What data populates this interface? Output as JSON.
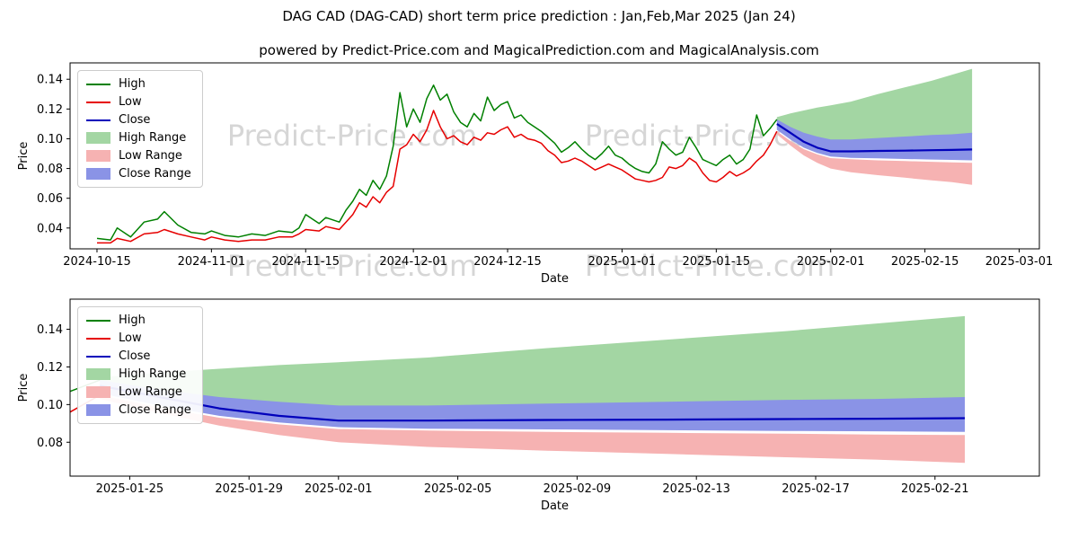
{
  "page": {
    "title": "DAG CAD (DAG-CAD) short term price prediction : Jan,Feb,Mar 2025 (Jan 24)",
    "subtitle": "powered by Predict-Price.com and MagicalPrediction.com and MagicalAnalysis.com",
    "watermark": "Predict-Price.com"
  },
  "colors": {
    "high": "#008000",
    "low": "#e60000",
    "close": "#0000bb",
    "high_range": "#a3d6a3",
    "low_range": "#f6b2b2",
    "close_range": "#8a93e6",
    "axis": "#000000",
    "watermark": "#d6d6d6"
  },
  "legend": [
    {
      "label": "High",
      "type": "line",
      "color_key": "high"
    },
    {
      "label": "Low",
      "type": "line",
      "color_key": "low"
    },
    {
      "label": "Close",
      "type": "line",
      "color_key": "close"
    },
    {
      "label": "High Range",
      "type": "patch",
      "color_key": "high_range"
    },
    {
      "label": "Low Range",
      "type": "patch",
      "color_key": "low_range"
    },
    {
      "label": "Close Range",
      "type": "patch",
      "color_key": "close_range"
    }
  ],
  "chart_data": [
    {
      "type": "line",
      "title": "",
      "xlabel": "Date",
      "ylabel": "Price",
      "x_unit": "days since 2024-10-15",
      "x_domain": [
        -4,
        140
      ],
      "y_domain": [
        0.026,
        0.151
      ],
      "grid": false,
      "legend_position": "upper-left",
      "x_ticks": [
        {
          "x": 0,
          "label": "2024-10-15"
        },
        {
          "x": 17,
          "label": "2024-11-01"
        },
        {
          "x": 31,
          "label": "2024-11-15"
        },
        {
          "x": 47,
          "label": "2024-12-01"
        },
        {
          "x": 61,
          "label": "2024-12-15"
        },
        {
          "x": 78,
          "label": "2025-01-01"
        },
        {
          "x": 92,
          "label": "2025-01-15"
        },
        {
          "x": 109,
          "label": "2025-02-01"
        },
        {
          "x": 123,
          "label": "2025-02-15"
        },
        {
          "x": 137,
          "label": "2025-03-01"
        }
      ],
      "y_ticks": [
        0.04,
        0.06,
        0.08,
        0.1,
        0.12,
        0.14
      ],
      "bands": [
        {
          "name": "High Range",
          "color_key": "high_range",
          "x": [
            101,
            103,
            105,
            107,
            109,
            112,
            116,
            120,
            124,
            127,
            130
          ],
          "upper": [
            0.1145,
            0.117,
            0.119,
            0.121,
            0.1225,
            0.125,
            0.13,
            0.1345,
            0.139,
            0.143,
            0.147
          ],
          "lower": [
            0.1125,
            0.1065,
            0.102,
            0.0995,
            0.098,
            0.0985,
            0.0995,
            0.1005,
            0.1015,
            0.102,
            0.103
          ]
        },
        {
          "name": "Low Range",
          "color_key": "low_range",
          "x": [
            101,
            103,
            105,
            107,
            109,
            112,
            116,
            120,
            124,
            127,
            130
          ],
          "upper": [
            0.105,
            0.0985,
            0.093,
            0.0895,
            0.087,
            0.0862,
            0.0855,
            0.085,
            0.0845,
            0.0841,
            0.0838
          ],
          "lower": [
            0.103,
            0.0955,
            0.0888,
            0.0838,
            0.08,
            0.0775,
            0.0755,
            0.0738,
            0.072,
            0.0708,
            0.069
          ]
        },
        {
          "name": "Close Range",
          "color_key": "close_range",
          "x": [
            101,
            103,
            105,
            107,
            109,
            112,
            116,
            120,
            124,
            127,
            130
          ],
          "upper": [
            0.113,
            0.108,
            0.104,
            0.1015,
            0.0995,
            0.0995,
            0.1005,
            0.1015,
            0.1025,
            0.103,
            0.104
          ],
          "lower": [
            0.106,
            0.0995,
            0.094,
            0.0905,
            0.088,
            0.0872,
            0.0868,
            0.0864,
            0.086,
            0.0858,
            0.0855
          ]
        }
      ],
      "lines": [
        {
          "name": "High",
          "color_key": "high",
          "width": 1.5,
          "x": [
            0,
            2,
            3,
            5,
            7,
            9,
            10,
            12,
            14,
            16,
            17,
            19,
            21,
            23,
            25,
            27,
            29,
            30,
            31,
            33,
            34,
            36,
            37,
            38,
            39,
            40,
            41,
            42,
            43,
            44,
            45,
            46,
            47,
            48,
            49,
            50,
            51,
            52,
            53,
            54,
            55,
            56,
            57,
            58,
            59,
            60,
            61,
            62,
            63,
            64,
            65,
            66,
            67,
            68,
            69,
            70,
            71,
            72,
            73,
            74,
            75,
            76,
            77,
            78,
            79,
            80,
            81,
            82,
            83,
            84,
            85,
            86,
            87,
            88,
            89,
            90,
            91,
            92,
            93,
            94,
            95,
            96,
            97,
            98,
            99,
            100,
            101
          ],
          "y": [
            0.033,
            0.032,
            0.04,
            0.034,
            0.044,
            0.046,
            0.051,
            0.042,
            0.037,
            0.036,
            0.038,
            0.035,
            0.034,
            0.036,
            0.035,
            0.038,
            0.037,
            0.04,
            0.049,
            0.043,
            0.047,
            0.044,
            0.052,
            0.058,
            0.066,
            0.062,
            0.072,
            0.066,
            0.075,
            0.095,
            0.131,
            0.108,
            0.12,
            0.111,
            0.127,
            0.136,
            0.126,
            0.13,
            0.118,
            0.111,
            0.108,
            0.117,
            0.112,
            0.128,
            0.119,
            0.123,
            0.125,
            0.114,
            0.116,
            0.111,
            0.108,
            0.105,
            0.101,
            0.097,
            0.091,
            0.094,
            0.098,
            0.093,
            0.089,
            0.086,
            0.09,
            0.095,
            0.089,
            0.087,
            0.083,
            0.08,
            0.078,
            0.077,
            0.083,
            0.098,
            0.093,
            0.089,
            0.091,
            0.101,
            0.094,
            0.086,
            0.084,
            0.082,
            0.086,
            0.089,
            0.083,
            0.086,
            0.093,
            0.116,
            0.102,
            0.107,
            0.113
          ]
        },
        {
          "name": "Low",
          "color_key": "low",
          "width": 1.5,
          "x": [
            0,
            2,
            3,
            5,
            7,
            9,
            10,
            12,
            14,
            16,
            17,
            19,
            21,
            23,
            25,
            27,
            29,
            30,
            31,
            33,
            34,
            36,
            37,
            38,
            39,
            40,
            41,
            42,
            43,
            44,
            45,
            46,
            47,
            48,
            49,
            50,
            51,
            52,
            53,
            54,
            55,
            56,
            57,
            58,
            59,
            60,
            61,
            62,
            63,
            64,
            65,
            66,
            67,
            68,
            69,
            70,
            71,
            72,
            73,
            74,
            75,
            76,
            77,
            78,
            79,
            80,
            81,
            82,
            83,
            84,
            85,
            86,
            87,
            88,
            89,
            90,
            91,
            92,
            93,
            94,
            95,
            96,
            97,
            98,
            99,
            100,
            101
          ],
          "y": [
            0.03,
            0.03,
            0.033,
            0.031,
            0.036,
            0.037,
            0.039,
            0.036,
            0.034,
            0.032,
            0.034,
            0.032,
            0.031,
            0.032,
            0.032,
            0.034,
            0.034,
            0.036,
            0.039,
            0.038,
            0.041,
            0.039,
            0.044,
            0.049,
            0.057,
            0.054,
            0.061,
            0.057,
            0.064,
            0.068,
            0.093,
            0.096,
            0.103,
            0.098,
            0.106,
            0.119,
            0.108,
            0.1,
            0.102,
            0.098,
            0.096,
            0.101,
            0.099,
            0.104,
            0.103,
            0.106,
            0.108,
            0.101,
            0.103,
            0.1,
            0.099,
            0.097,
            0.092,
            0.089,
            0.084,
            0.085,
            0.087,
            0.085,
            0.082,
            0.079,
            0.081,
            0.083,
            0.081,
            0.079,
            0.076,
            0.073,
            0.072,
            0.071,
            0.072,
            0.074,
            0.081,
            0.08,
            0.082,
            0.087,
            0.084,
            0.077,
            0.072,
            0.071,
            0.074,
            0.078,
            0.075,
            0.077,
            0.08,
            0.085,
            0.089,
            0.096,
            0.105
          ]
        },
        {
          "name": "Close",
          "color_key": "close",
          "width": 2.2,
          "x": [
            101,
            103,
            105,
            107,
            109,
            112,
            116,
            120,
            124,
            127,
            130
          ],
          "y": [
            0.11,
            0.104,
            0.098,
            0.094,
            0.0915,
            0.0915,
            0.0918,
            0.092,
            0.0923,
            0.0925,
            0.0928
          ]
        }
      ]
    },
    {
      "type": "line",
      "title": "",
      "xlabel": "Date",
      "ylabel": "Price",
      "x_unit": "days since 2024-10-15",
      "x_domain": [
        100,
        132.5
      ],
      "y_domain": [
        0.062,
        0.156
      ],
      "grid": false,
      "legend_position": "upper-left",
      "x_ticks": [
        {
          "x": 102,
          "label": "2025-01-25"
        },
        {
          "x": 106,
          "label": "2025-01-29"
        },
        {
          "x": 109,
          "label": "2025-02-01"
        },
        {
          "x": 113,
          "label": "2025-02-05"
        },
        {
          "x": 117,
          "label": "2025-02-09"
        },
        {
          "x": 121,
          "label": "2025-02-13"
        },
        {
          "x": 125,
          "label": "2025-02-17"
        },
        {
          "x": 129,
          "label": "2025-02-21"
        }
      ],
      "y_ticks": [
        0.08,
        0.1,
        0.12,
        0.14
      ],
      "bands": [
        {
          "name": "High Range",
          "color_key": "high_range",
          "x": [
            101,
            103,
            105,
            107,
            109,
            112,
            116,
            120,
            124,
            127,
            130
          ],
          "upper": [
            0.1145,
            0.117,
            0.119,
            0.121,
            0.1225,
            0.125,
            0.13,
            0.1345,
            0.139,
            0.143,
            0.147
          ],
          "lower": [
            0.1125,
            0.1065,
            0.102,
            0.0995,
            0.098,
            0.0985,
            0.0995,
            0.1005,
            0.1015,
            0.102,
            0.103
          ]
        },
        {
          "name": "Low Range",
          "color_key": "low_range",
          "x": [
            101,
            103,
            105,
            107,
            109,
            112,
            116,
            120,
            124,
            127,
            130
          ],
          "upper": [
            0.105,
            0.0985,
            0.093,
            0.0895,
            0.087,
            0.0862,
            0.0855,
            0.085,
            0.0845,
            0.0841,
            0.0838
          ],
          "lower": [
            0.103,
            0.0955,
            0.0888,
            0.0838,
            0.08,
            0.0775,
            0.0755,
            0.0738,
            0.072,
            0.0708,
            0.069
          ]
        },
        {
          "name": "Close Range",
          "color_key": "close_range",
          "x": [
            101,
            103,
            105,
            107,
            109,
            112,
            116,
            120,
            124,
            127,
            130
          ],
          "upper": [
            0.113,
            0.108,
            0.104,
            0.1015,
            0.0995,
            0.0995,
            0.1005,
            0.1015,
            0.1025,
            0.103,
            0.104
          ],
          "lower": [
            0.106,
            0.0995,
            0.094,
            0.0905,
            0.088,
            0.0872,
            0.0868,
            0.0864,
            0.086,
            0.0858,
            0.0855
          ]
        }
      ],
      "lines": [
        {
          "name": "High",
          "color_key": "high",
          "width": 1.5,
          "x": [
            100,
            101
          ],
          "y": [
            0.107,
            0.113
          ]
        },
        {
          "name": "Low",
          "color_key": "low",
          "width": 1.5,
          "x": [
            100,
            101
          ],
          "y": [
            0.096,
            0.105
          ]
        },
        {
          "name": "Close",
          "color_key": "close",
          "width": 2.2,
          "x": [
            101,
            103,
            105,
            107,
            109,
            112,
            116,
            120,
            124,
            127,
            130
          ],
          "y": [
            0.11,
            0.104,
            0.098,
            0.094,
            0.0915,
            0.0915,
            0.0918,
            0.092,
            0.0923,
            0.0925,
            0.0928
          ]
        }
      ]
    }
  ]
}
